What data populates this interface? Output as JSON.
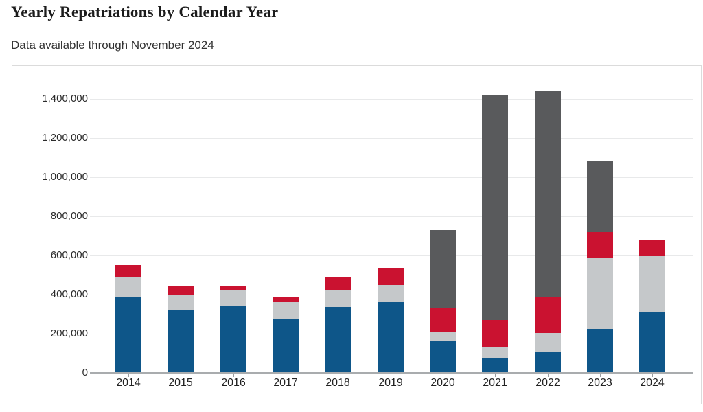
{
  "header": {
    "title": "Yearly Repatriations by Calendar Year",
    "subtitle": "Data available through November 2024"
  },
  "chart_data": {
    "type": "bar",
    "stacked": true,
    "title": "Yearly Repatriations by Calendar Year",
    "subtitle": "Data available through November 2024",
    "categories": [
      "2014",
      "2015",
      "2016",
      "2017",
      "2018",
      "2019",
      "2020",
      "2021",
      "2022",
      "2023",
      "2024"
    ],
    "series": [
      {
        "name": "series-blue",
        "color": "#0E5689",
        "values": [
          390000,
          320000,
          340000,
          272000,
          335000,
          360000,
          165000,
          75000,
          110000,
          225000,
          310000
        ]
      },
      {
        "name": "series-light-gray",
        "color": "#C5C8CA",
        "values": [
          100000,
          80000,
          80000,
          88000,
          90000,
          90000,
          43000,
          55000,
          95000,
          365000,
          285000
        ]
      },
      {
        "name": "series-red",
        "color": "#CA1230",
        "values": [
          60000,
          45000,
          25000,
          28000,
          65000,
          85000,
          120000,
          140000,
          185000,
          130000,
          85000
        ]
      },
      {
        "name": "series-dark-gray",
        "color": "#595A5C",
        "values": [
          0,
          0,
          0,
          0,
          0,
          0,
          402000,
          1150000,
          1050000,
          365000,
          0
        ]
      }
    ],
    "stack_totals": [
      550000,
      445000,
      445000,
      388000,
      490000,
      535000,
      730000,
      1420000,
      1440000,
      1085000,
      680000
    ],
    "xlabel": "",
    "ylabel": "",
    "ylim": [
      0,
      1560000
    ],
    "yticks": [
      0,
      200000,
      400000,
      600000,
      800000,
      1000000,
      1200000,
      1400000
    ],
    "ytick_labels": [
      "0",
      "200,000",
      "400,000",
      "600,000",
      "800,000",
      "1,000,000",
      "1,200,000",
      "1,400,000"
    ],
    "grid": true,
    "legend": "none"
  },
  "style_colors": {
    "gridline": "#E8E9EA",
    "axis_line": "#A9ACAE",
    "panel_border": "#DBDBDB",
    "tick_label": "#2B2B2B"
  }
}
